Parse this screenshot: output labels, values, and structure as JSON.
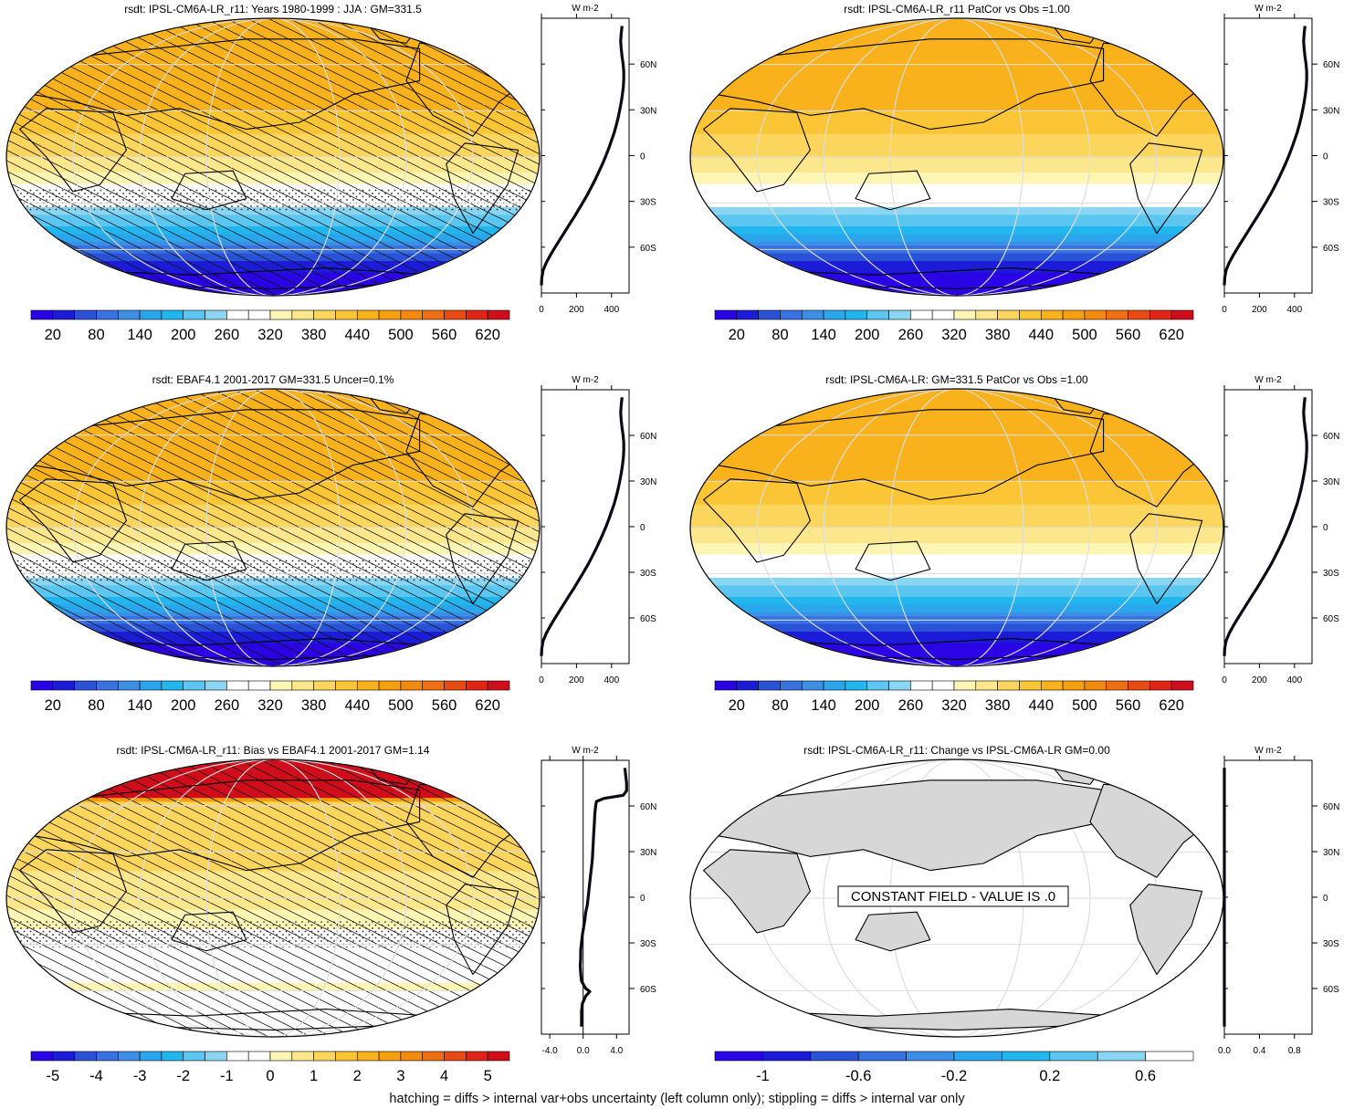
{
  "footer_note": "hatching = diffs > internal var+obs uncertainty (left column only); stippling = diffs > internal var only",
  "profile_unit": "W m-2",
  "colors": {
    "abs_scale": [
      "#2b04e6",
      "#1c1cd8",
      "#2a52d6",
      "#3772e0",
      "#3d8ee6",
      "#2aa6ec",
      "#22b6ef",
      "#5bc7f0",
      "#8ad6f2",
      "#ffffff",
      "#ffffff",
      "#fdf5b3",
      "#fde78c",
      "#fcd55d",
      "#fbc535",
      "#f9b21c",
      "#f6a010",
      "#f28a10",
      "#ee6e12",
      "#e84a14",
      "#e02517",
      "#d00d1a"
    ],
    "bias_scale": [
      "#2b04e6",
      "#1c1cd8",
      "#2a52d6",
      "#3772e0",
      "#3d8ee6",
      "#2aa6ec",
      "#22b6ef",
      "#5bc7f0",
      "#8ad6f2",
      "#ffffff",
      "#ffffff",
      "#fdf5b3",
      "#fde78c",
      "#fcd55d",
      "#fbc535",
      "#f9b21c",
      "#f6a010",
      "#f28a10",
      "#ee6e12",
      "#e84a14",
      "#e02517",
      "#d00d1a"
    ],
    "change_scale": [
      "#2b04e6",
      "#1c1cd8",
      "#2a52d6",
      "#3772e0",
      "#3d8ee6",
      "#2aa6ec",
      "#22b6ef",
      "#5bc7f0",
      "#8ad6f2",
      "#ffffff"
    ],
    "land_gray": "#d7d7d7"
  },
  "chart_data": [
    {
      "type": "heatmap",
      "panel": "top-left",
      "title": "rsdt: IPSL-CM6A-LR_r11: Years 1980-1999 : JJA : GM=331.5",
      "hatching": true,
      "stippling_lat": [
        -35,
        -20
      ],
      "zonal_field": [
        [
          90,
          440
        ],
        [
          75,
          455
        ],
        [
          60,
          470
        ],
        [
          45,
          460
        ],
        [
          30,
          440
        ],
        [
          15,
          410
        ],
        [
          0,
          380
        ],
        [
          -15,
          330
        ],
        [
          -25,
          300
        ],
        [
          -30,
          270
        ],
        [
          -45,
          200
        ],
        [
          -55,
          140
        ],
        [
          -60,
          90
        ],
        [
          -75,
          20
        ],
        [
          -90,
          0
        ]
      ],
      "colorbar": {
        "labels": [
          "20",
          "80",
          "140",
          "200",
          "260",
          "320",
          "380",
          "440",
          "500",
          "560",
          "620"
        ],
        "min": -10,
        "max": 650
      },
      "profile": {
        "xlim": [
          0,
          500
        ],
        "xticks": [
          "0",
          "200",
          "400"
        ],
        "yticks": [
          "60N",
          "30N",
          "0",
          "30S",
          "60S"
        ],
        "ylim": [
          -90,
          90
        ],
        "lat": [
          85,
          80,
          75,
          70,
          65,
          60,
          55,
          50,
          45,
          40,
          35,
          30,
          25,
          20,
          15,
          10,
          5,
          0,
          -5,
          -10,
          -15,
          -20,
          -25,
          -30,
          -35,
          -40,
          -45,
          -50,
          -55,
          -60,
          -65,
          -70,
          -75,
          -80,
          -85
        ],
        "value": [
          460,
          455,
          452,
          455,
          460,
          466,
          470,
          470,
          467,
          462,
          455,
          447,
          438,
          427,
          415,
          400,
          385,
          368,
          350,
          330,
          310,
          288,
          265,
          240,
          214,
          188,
          160,
          133,
          105,
          78,
          52,
          28,
          10,
          2,
          0
        ]
      }
    },
    {
      "type": "heatmap",
      "panel": "top-right",
      "title": "rsdt: IPSL-CM6A-LR_r11 PatCor vs Obs =1.00",
      "hatching": false,
      "zonal_field": [
        [
          90,
          440
        ],
        [
          75,
          455
        ],
        [
          60,
          470
        ],
        [
          45,
          460
        ],
        [
          30,
          440
        ],
        [
          15,
          410
        ],
        [
          0,
          380
        ],
        [
          -15,
          330
        ],
        [
          -25,
          300
        ],
        [
          -30,
          270
        ],
        [
          -45,
          200
        ],
        [
          -55,
          140
        ],
        [
          -60,
          90
        ],
        [
          -75,
          20
        ],
        [
          -90,
          0
        ]
      ],
      "colorbar": {
        "labels": [
          "20",
          "80",
          "140",
          "200",
          "260",
          "320",
          "380",
          "440",
          "500",
          "560",
          "620"
        ],
        "min": -10,
        "max": 650
      },
      "profile": {
        "xlim": [
          0,
          500
        ],
        "xticks": [
          "0",
          "200",
          "400"
        ],
        "yticks": [
          "60N",
          "30N",
          "0",
          "30S",
          "60S"
        ],
        "ylim": [
          -90,
          90
        ],
        "lat": [
          85,
          80,
          75,
          70,
          65,
          60,
          55,
          50,
          45,
          40,
          35,
          30,
          25,
          20,
          15,
          10,
          5,
          0,
          -5,
          -10,
          -15,
          -20,
          -25,
          -30,
          -35,
          -40,
          -45,
          -50,
          -55,
          -60,
          -65,
          -70,
          -75,
          -80,
          -85
        ],
        "value": [
          460,
          455,
          452,
          455,
          460,
          466,
          470,
          470,
          467,
          462,
          455,
          447,
          438,
          427,
          415,
          400,
          385,
          368,
          350,
          330,
          310,
          288,
          265,
          240,
          214,
          188,
          160,
          133,
          105,
          78,
          52,
          28,
          10,
          2,
          0
        ]
      }
    },
    {
      "type": "heatmap",
      "panel": "middle-left",
      "title": "rsdt: EBAF4.1 2001-2017 GM=331.5 Uncer=0.1%",
      "hatching": true,
      "stippling_lat": [
        -35,
        -20
      ],
      "zonal_field": [
        [
          90,
          440
        ],
        [
          75,
          455
        ],
        [
          60,
          470
        ],
        [
          45,
          460
        ],
        [
          30,
          440
        ],
        [
          15,
          410
        ],
        [
          0,
          380
        ],
        [
          -15,
          330
        ],
        [
          -25,
          300
        ],
        [
          -30,
          270
        ],
        [
          -45,
          200
        ],
        [
          -55,
          140
        ],
        [
          -60,
          90
        ],
        [
          -75,
          20
        ],
        [
          -90,
          0
        ]
      ],
      "colorbar": {
        "labels": [
          "20",
          "80",
          "140",
          "200",
          "260",
          "320",
          "380",
          "440",
          "500",
          "560",
          "620"
        ],
        "min": -10,
        "max": 650
      },
      "profile": {
        "xlim": [
          0,
          500
        ],
        "xticks": [
          "0",
          "200",
          "400"
        ],
        "yticks": [
          "60N",
          "30N",
          "0",
          "30S",
          "60S"
        ],
        "ylim": [
          -90,
          90
        ],
        "lat": [
          85,
          80,
          75,
          70,
          65,
          60,
          55,
          50,
          45,
          40,
          35,
          30,
          25,
          20,
          15,
          10,
          5,
          0,
          -5,
          -10,
          -15,
          -20,
          -25,
          -30,
          -35,
          -40,
          -45,
          -50,
          -55,
          -60,
          -65,
          -70,
          -75,
          -80,
          -85
        ],
        "value": [
          460,
          455,
          452,
          455,
          460,
          466,
          470,
          470,
          467,
          462,
          455,
          447,
          438,
          427,
          415,
          400,
          385,
          368,
          350,
          330,
          310,
          288,
          265,
          240,
          214,
          188,
          160,
          133,
          105,
          78,
          52,
          28,
          10,
          2,
          0
        ]
      }
    },
    {
      "type": "heatmap",
      "panel": "middle-right",
      "title": "rsdt: IPSL-CM6A-LR: GM=331.5 PatCor vs Obs =1.00",
      "hatching": false,
      "zonal_field": [
        [
          90,
          440
        ],
        [
          75,
          455
        ],
        [
          60,
          470
        ],
        [
          45,
          460
        ],
        [
          30,
          440
        ],
        [
          15,
          410
        ],
        [
          0,
          380
        ],
        [
          -15,
          330
        ],
        [
          -25,
          300
        ],
        [
          -30,
          270
        ],
        [
          -45,
          200
        ],
        [
          -55,
          140
        ],
        [
          -60,
          90
        ],
        [
          -75,
          20
        ],
        [
          -90,
          0
        ]
      ],
      "colorbar": {
        "labels": [
          "20",
          "80",
          "140",
          "200",
          "260",
          "320",
          "380",
          "440",
          "500",
          "560",
          "620"
        ],
        "min": -10,
        "max": 650
      },
      "profile": {
        "xlim": [
          0,
          500
        ],
        "xticks": [
          "0",
          "200",
          "400"
        ],
        "yticks": [
          "60N",
          "30N",
          "0",
          "30S",
          "60S"
        ],
        "ylim": [
          -90,
          90
        ],
        "lat": [
          85,
          80,
          75,
          70,
          65,
          60,
          55,
          50,
          45,
          40,
          35,
          30,
          25,
          20,
          15,
          10,
          5,
          0,
          -5,
          -10,
          -15,
          -20,
          -25,
          -30,
          -35,
          -40,
          -45,
          -50,
          -55,
          -60,
          -65,
          -70,
          -75,
          -80,
          -85
        ],
        "value": [
          460,
          455,
          452,
          455,
          460,
          466,
          470,
          470,
          467,
          462,
          455,
          447,
          438,
          427,
          415,
          400,
          385,
          368,
          350,
          330,
          310,
          288,
          265,
          240,
          214,
          188,
          160,
          133,
          105,
          78,
          52,
          28,
          10,
          2,
          0
        ]
      }
    },
    {
      "type": "heatmap",
      "panel": "bottom-left",
      "title": "rsdt: IPSL-CM6A-LR_r11: Bias vs EBAF4.1 2001-2017 GM=1.14",
      "hatching": true,
      "stippling_lat": [
        -32,
        -15
      ],
      "zonal_field": [
        [
          90,
          5.3
        ],
        [
          75,
          5.2
        ],
        [
          66,
          5.0
        ],
        [
          62,
          1.4
        ],
        [
          50,
          1.3
        ],
        [
          30,
          1.2
        ],
        [
          10,
          0.9
        ],
        [
          -5,
          0.6
        ],
        [
          -15,
          0.25
        ],
        [
          -25,
          -0.3
        ],
        [
          -45,
          -0.3
        ],
        [
          -55,
          -0.2
        ],
        [
          -58,
          0.6
        ],
        [
          -62,
          -0.2
        ],
        [
          -90,
          -0.2
        ]
      ],
      "colorbar": {
        "labels": [
          "-5",
          "-4",
          "-3",
          "-2",
          "-1",
          "0",
          "1",
          "2",
          "3",
          "4",
          "5"
        ],
        "min": -5.5,
        "max": 5.5
      },
      "profile": {
        "xlim": [
          -5,
          5.5
        ],
        "xticks": [
          "-4.0",
          "0.0",
          "4.0"
        ],
        "yticks": [
          "60N",
          "30N",
          "0",
          "30S",
          "60S"
        ],
        "ylim": [
          -90,
          90
        ],
        "lat": [
          85,
          80,
          75,
          70,
          67,
          65,
          63,
          60,
          55,
          50,
          45,
          40,
          35,
          30,
          25,
          20,
          15,
          10,
          5,
          0,
          -5,
          -10,
          -15,
          -20,
          -25,
          -30,
          -35,
          -40,
          -45,
          -50,
          -55,
          -60,
          -62,
          -65,
          -70,
          -75,
          -80,
          -85
        ],
        "value": [
          5.0,
          5.1,
          5.2,
          5.2,
          4.8,
          2.5,
          1.6,
          1.5,
          1.4,
          1.35,
          1.3,
          1.25,
          1.2,
          1.15,
          1.1,
          1.0,
          0.9,
          0.8,
          0.7,
          0.6,
          0.5,
          0.3,
          0.2,
          0.05,
          -0.1,
          -0.2,
          -0.3,
          -0.3,
          -0.35,
          -0.3,
          -0.2,
          0.3,
          0.8,
          0.3,
          -0.1,
          -0.2,
          -0.2,
          -0.2
        ]
      }
    },
    {
      "type": "heatmap",
      "panel": "bottom-right",
      "title": "rsdt: IPSL-CM6A-LR_r11: Change vs IPSL-CM6A-LR GM=0.00",
      "constant_label": "CONSTANT FIELD - VALUE IS .0",
      "colorbar": {
        "labels": [
          "-1",
          "-0.6",
          "-0.2",
          "0.2",
          "0.6"
        ],
        "min": -1.2,
        "max": 1.0
      },
      "profile": {
        "xlim": [
          0,
          1
        ],
        "xticks": [
          "0.0",
          "0.4",
          "0.8"
        ],
        "yticks": [
          "60N",
          "30N",
          "0",
          "30S",
          "60S"
        ],
        "ylim": [
          -90,
          90
        ],
        "lat": [
          85,
          60,
          30,
          0,
          -30,
          -60,
          -85
        ],
        "value": [
          0,
          0,
          0,
          0,
          0,
          0,
          0
        ]
      }
    }
  ]
}
